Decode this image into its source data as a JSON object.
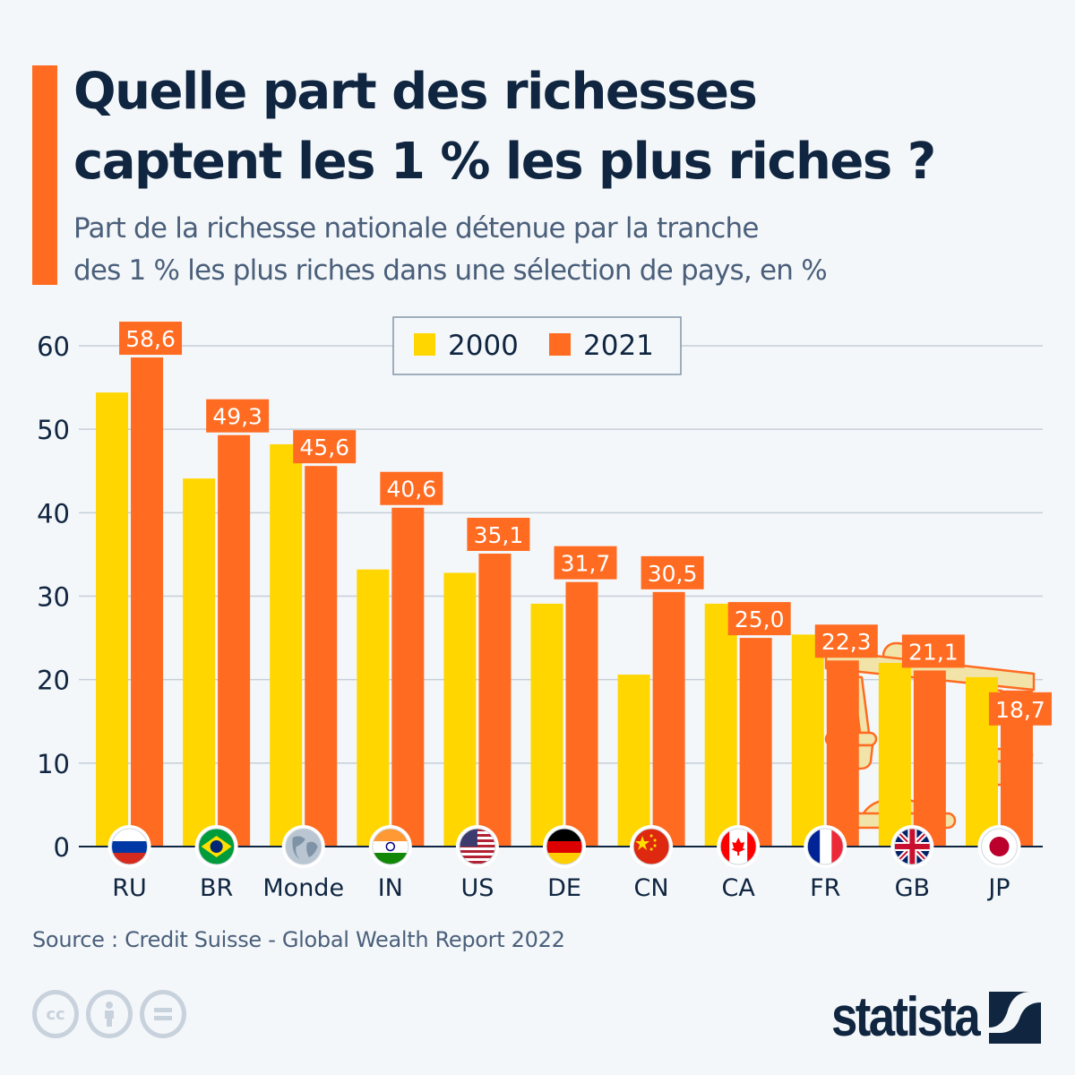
{
  "header": {
    "title_line1": "Quelle part des richesses",
    "title_line2": "captent les 1 % les plus riches ?",
    "subtitle_line1": "Part de la richesse nationale détenue par la tranche",
    "subtitle_line2": "des 1 % les plus riches dans une sélection de pays, en %"
  },
  "colors": {
    "accent": "#ff6b21",
    "series_2000": "#ffd600",
    "series_2021": "#ff6b21",
    "text_dark": "#0f2540",
    "text_muted": "#4a5f7a",
    "grid": "#c5ced8",
    "background": "#f4f7fa"
  },
  "chart_data": {
    "type": "bar",
    "title": "Quelle part des richesses captent les 1 % les plus riches ?",
    "xlabel": "",
    "ylabel": "",
    "ylim": [
      0,
      60
    ],
    "yticks": [
      0,
      10,
      20,
      30,
      40,
      50,
      60
    ],
    "grid": true,
    "legend_position": "top-center",
    "categories": [
      "RU",
      "BR",
      "Monde",
      "IN",
      "US",
      "DE",
      "CN",
      "CA",
      "FR",
      "GB",
      "JP"
    ],
    "category_icons": [
      "flag-russia",
      "flag-brazil",
      "globe-world",
      "flag-india",
      "flag-usa",
      "flag-germany",
      "flag-china",
      "flag-canada",
      "flag-france",
      "flag-uk",
      "flag-japan"
    ],
    "series": [
      {
        "name": "2000",
        "values": [
          54.4,
          44.1,
          48.2,
          33.2,
          32.8,
          29.1,
          20.6,
          29.1,
          25.4,
          22.0,
          20.3
        ],
        "labeled": false
      },
      {
        "name": "2021",
        "values": [
          58.6,
          49.3,
          45.6,
          40.6,
          35.1,
          31.7,
          30.5,
          25.0,
          22.3,
          21.1,
          18.7
        ],
        "labeled": true,
        "labels": [
          "58,6",
          "49,3",
          "45,6",
          "40,6",
          "35,1",
          "31,7",
          "30,5",
          "25,0",
          "22,3",
          "21,1",
          "18,7"
        ]
      }
    ]
  },
  "footer": {
    "source": "Source : Credit Suisse - Global Wealth Report 2022",
    "license_icons": [
      "cc-icon",
      "attribution-icon",
      "no-derivatives-icon"
    ],
    "cc_label": "cc",
    "brand": "statista"
  }
}
